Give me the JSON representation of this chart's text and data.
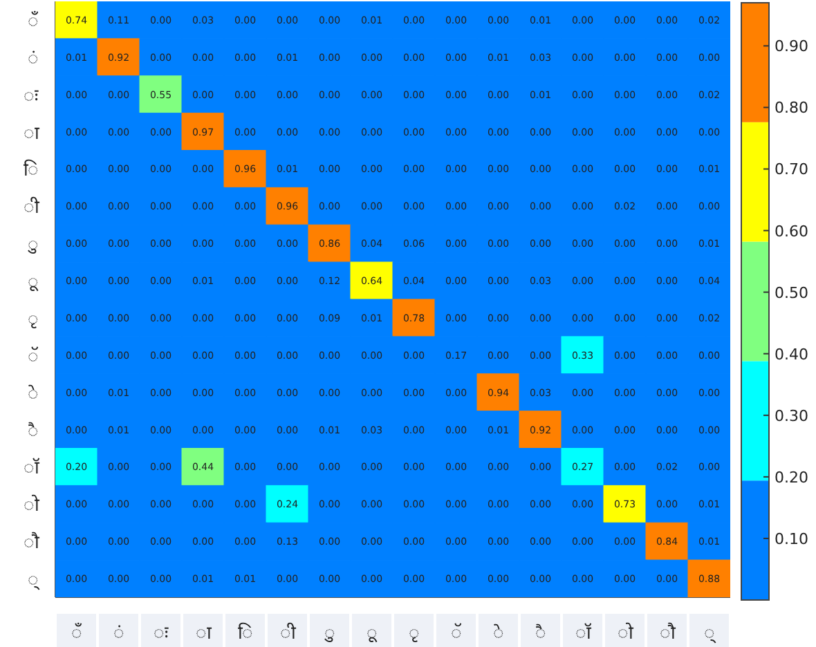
{
  "chart_data": {
    "type": "heatmap",
    "categories": [
      "◌ँ",
      "◌ं",
      "◌ः",
      "◌ा",
      "◌ि",
      "◌ी",
      "◌ु",
      "◌ू",
      "◌ृ",
      "◌ॅ",
      "◌े",
      "◌ै",
      "◌ॉ",
      "◌ो",
      "◌ौ",
      "◌्"
    ],
    "y_categories": [
      "◌ँ",
      "◌ं",
      "◌ः",
      "◌ा",
      "◌ि",
      "◌ी",
      "◌ु",
      "◌ू",
      "◌ृ",
      "◌ॅ",
      "◌े",
      "◌ै",
      "◌ॉ",
      "◌ो",
      "◌ौ",
      "◌्"
    ],
    "cells": [
      [
        0.74,
        0.11,
        0.0,
        0.03,
        0.0,
        0.0,
        0.0,
        0.01,
        0.0,
        0.0,
        0.0,
        0.01,
        0.0,
        0.0,
        0.0,
        0.02
      ],
      [
        0.01,
        0.92,
        0.0,
        0.0,
        0.0,
        0.01,
        0.0,
        0.0,
        0.0,
        0.0,
        0.01,
        0.03,
        0.0,
        0.0,
        0.0,
        0.0
      ],
      [
        0.0,
        0.0,
        0.55,
        0.0,
        0.0,
        0.0,
        0.0,
        0.0,
        0.0,
        0.0,
        0.0,
        0.01,
        0.0,
        0.0,
        0.0,
        0.02
      ],
      [
        0.0,
        0.0,
        0.0,
        0.97,
        0.0,
        0.0,
        0.0,
        0.0,
        0.0,
        0.0,
        0.0,
        0.0,
        0.0,
        0.0,
        0.0,
        0.0
      ],
      [
        0.0,
        0.0,
        0.0,
        0.0,
        0.96,
        0.01,
        0.0,
        0.0,
        0.0,
        0.0,
        0.0,
        0.0,
        0.0,
        0.0,
        0.0,
        0.01
      ],
      [
        0.0,
        0.0,
        0.0,
        0.0,
        0.0,
        0.96,
        0.0,
        0.0,
        0.0,
        0.0,
        0.0,
        0.0,
        0.0,
        0.02,
        0.0,
        0.0
      ],
      [
        0.0,
        0.0,
        0.0,
        0.0,
        0.0,
        0.0,
        0.86,
        0.04,
        0.06,
        0.0,
        0.0,
        0.0,
        0.0,
        0.0,
        0.0,
        0.01
      ],
      [
        0.0,
        0.0,
        0.0,
        0.01,
        0.0,
        0.0,
        0.12,
        0.64,
        0.04,
        0.0,
        0.0,
        0.03,
        0.0,
        0.0,
        0.0,
        0.04
      ],
      [
        0.0,
        0.0,
        0.0,
        0.0,
        0.0,
        0.0,
        0.09,
        0.01,
        0.78,
        0.0,
        0.0,
        0.0,
        0.0,
        0.0,
        0.0,
        0.02
      ],
      [
        0.0,
        0.0,
        0.0,
        0.0,
        0.0,
        0.0,
        0.0,
        0.0,
        0.0,
        0.17,
        0.0,
        0.0,
        0.33,
        0.0,
        0.0,
        0.0
      ],
      [
        0.0,
        0.01,
        0.0,
        0.0,
        0.0,
        0.0,
        0.0,
        0.0,
        0.0,
        0.0,
        0.94,
        0.03,
        0.0,
        0.0,
        0.0,
        0.0
      ],
      [
        0.0,
        0.01,
        0.0,
        0.0,
        0.0,
        0.0,
        0.01,
        0.03,
        0.0,
        0.0,
        0.01,
        0.92,
        0.0,
        0.0,
        0.0,
        0.0
      ],
      [
        0.2,
        0.0,
        0.0,
        0.44,
        0.0,
        0.0,
        0.0,
        0.0,
        0.0,
        0.0,
        0.0,
        0.0,
        0.27,
        0.0,
        0.02,
        0.0
      ],
      [
        0.0,
        0.0,
        0.0,
        0.0,
        0.0,
        0.24,
        0.0,
        0.0,
        0.0,
        0.0,
        0.0,
        0.0,
        0.0,
        0.73,
        0.0,
        0.01
      ],
      [
        0.0,
        0.0,
        0.0,
        0.0,
        0.0,
        0.13,
        0.0,
        0.0,
        0.0,
        0.0,
        0.0,
        0.0,
        0.0,
        0.0,
        0.84,
        0.01
      ],
      [
        0.0,
        0.0,
        0.0,
        0.01,
        0.01,
        0.0,
        0.0,
        0.0,
        0.0,
        0.0,
        0.0,
        0.0,
        0.0,
        0.0,
        0.0,
        0.88
      ]
    ],
    "cell_labels": [
      [
        "0.74",
        "0.11",
        "0.00",
        "0.03",
        "0.00",
        "0.00",
        "0.00",
        "0.01",
        "0.00",
        "0.00",
        "0.00",
        "0.01",
        "0.00",
        "0.00",
        "0.00",
        "0.02"
      ],
      [
        "0.01",
        "0.92",
        "0.00",
        "0.00",
        "0.00",
        "0.01",
        "0.00",
        "0.00",
        "0.00",
        "0.00",
        "0.01",
        "0.03",
        "0.00",
        "0.00",
        "0.00",
        "0.00"
      ],
      [
        "0.00",
        "0.00",
        "0.55",
        "0.00",
        "0.00",
        "0.00",
        "0.00",
        "0.00",
        "0.00",
        "0.00",
        "0.00",
        "0.01",
        "0.00",
        "0.00",
        "0.00",
        "0.02"
      ],
      [
        "0.00",
        "0.00",
        "0.00",
        "0.97",
        "0.00",
        "0.00",
        "0.00",
        "0.00",
        "0.00",
        "0.00",
        "0.00",
        "0.00",
        "0.00",
        "0.00",
        "0.00",
        "0.00"
      ],
      [
        "0.00",
        "0.00",
        "0.00",
        "0.00",
        "0.96",
        "0.01",
        "0.00",
        "0.00",
        "0.00",
        "0.00",
        "0.00",
        "0.00",
        "0.00",
        "0.00",
        "0.00",
        "0.01"
      ],
      [
        "0.00",
        "0.00",
        "0.00",
        "0.00",
        "0.00",
        "0.96",
        "0.00",
        "0.00",
        "0.00",
        "0.00",
        "0.00",
        "0.00",
        "0.00",
        "0.02",
        "0.00",
        "0.00"
      ],
      [
        "0.00",
        "0.00",
        "0.00",
        "0.00",
        "0.00",
        "0.00",
        "0.86",
        "0.04",
        "0.06",
        "0.00",
        "0.00",
        "0.00",
        "0.00",
        "0.00",
        "0.00",
        "0.01"
      ],
      [
        "0.00",
        "0.00",
        "0.00",
        "0.01",
        "0.00",
        "0.00",
        "0.12",
        "0.64",
        "0.04",
        "0.00",
        "0.00",
        "0.03",
        "0.00",
        "0.00",
        "0.00",
        "0.04"
      ],
      [
        "0.00",
        "0.00",
        "0.00",
        "0.00",
        "0.00",
        "0.00",
        "0.09",
        "0.01",
        "0.78",
        "0.00",
        "0.00",
        "0.00",
        "0.00",
        "0.00",
        "0.00",
        "0.02"
      ],
      [
        "0.00",
        "0.00",
        "0.00",
        "0.00",
        "0.00",
        "0.00",
        "0.00",
        "0.00",
        "0.00",
        "0.17",
        "0.00",
        "0.00",
        "0.33",
        "0.00",
        "0.00",
        "0.00"
      ],
      [
        "0.00",
        "0.01",
        "0.00",
        "0.00",
        "0.00",
        "0.00",
        "0.00",
        "0.00",
        "0.00",
        "0.00",
        "0.94",
        "0.03",
        "0.00",
        "0.00",
        "0.00",
        "0.00"
      ],
      [
        "0.00",
        "0.01",
        "0.00",
        "0.00",
        "0.00",
        "0.00",
        "0.01",
        "0.03",
        "0.00",
        "0.00",
        "0.01",
        "0.92",
        "0.00",
        "0.00",
        "0.00",
        "0.00"
      ],
      [
        "0.20",
        "0.00",
        "0.00",
        "0.44",
        "0.00",
        "0.00",
        "0.00",
        "0.00",
        "0.00",
        "0.00",
        "0.00",
        "0.00",
        "0.27",
        "0.00",
        "0.02",
        "0.00"
      ],
      [
        "0.00",
        "0.00",
        "0.00",
        "0.00",
        "0.00",
        "0.24",
        "0.00",
        "0.00",
        "0.00",
        "0.00",
        "0.00",
        "0.00",
        "0.00",
        "0.73",
        "0.00",
        "0.01"
      ],
      [
        "0.00",
        "0.00",
        "0.00",
        "0.00",
        "0.00",
        "0.13",
        "0.00",
        "0.00",
        "0.00",
        "0.00",
        "0.00",
        "0.00",
        "0.00",
        "0.00",
        "0.84",
        "0.01"
      ],
      [
        "0.00",
        "0.00",
        "0.00",
        "0.01",
        "0.01",
        "0.00",
        "0.00",
        "0.00",
        "0.00",
        "0.00",
        "0.00",
        "0.00",
        "0.00",
        "0.00",
        "0.00",
        "0.88"
      ]
    ],
    "colors": [
      "#0080ff",
      "#00ffff",
      "#80ff80",
      "#ffff00",
      "#ff8000"
    ],
    "clim": [
      0,
      0.97
    ],
    "cticks": [
      {
        "value": 0.1,
        "label": "0.10"
      },
      {
        "value": 0.2,
        "label": "0.20"
      },
      {
        "value": 0.3,
        "label": "0.30"
      },
      {
        "value": 0.4,
        "label": "0.40"
      },
      {
        "value": 0.5,
        "label": "0.50"
      },
      {
        "value": 0.6,
        "label": "0.60"
      },
      {
        "value": 0.7,
        "label": "0.70"
      },
      {
        "value": 0.8,
        "label": "0.80"
      },
      {
        "value": 0.9,
        "label": "0.90"
      }
    ]
  }
}
